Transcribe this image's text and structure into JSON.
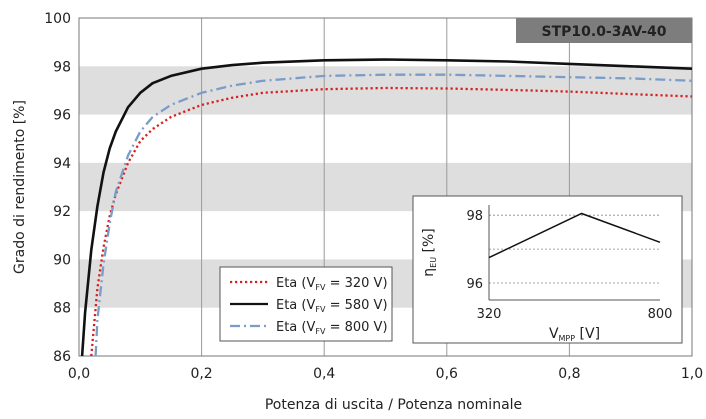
{
  "chart_data": {
    "type": "line",
    "badge": "STP10.0-3AV-40",
    "xlabel": "Potenza di uscita / Potenza nominale",
    "ylabel": "Grado di rendimento [%]",
    "xlim": [
      0,
      1
    ],
    "ylim": [
      86,
      100
    ],
    "x_ticks": [
      "0,0",
      "0,2",
      "0,4",
      "0,6",
      "0,8",
      "1,0"
    ],
    "y_ticks": [
      "86",
      "88",
      "90",
      "92",
      "94",
      "96",
      "98",
      "100"
    ],
    "grid": "vertical lines at x ticks, alternating grey bands on y",
    "legend_position": "bottom-center",
    "series": [
      {
        "name": "Eta",
        "legend_sub": "FV",
        "legend_value": "= 320 V",
        "color": "#d62020",
        "dash": "dotted",
        "x": [
          0.02,
          0.03,
          0.04,
          0.05,
          0.06,
          0.08,
          0.1,
          0.12,
          0.15,
          0.2,
          0.25,
          0.3,
          0.4,
          0.5,
          0.6,
          0.7,
          0.8,
          0.9,
          1.0
        ],
        "y": [
          86.0,
          88.8,
          90.5,
          91.8,
          92.7,
          94.0,
          94.9,
          95.4,
          95.9,
          96.4,
          96.7,
          96.9,
          97.05,
          97.1,
          97.08,
          97.02,
          96.95,
          96.85,
          96.75
        ]
      },
      {
        "name": "Eta",
        "legend_sub": "FV",
        "legend_value": "= 580 V",
        "color": "#111111",
        "dash": "solid",
        "x": [
          0.005,
          0.01,
          0.02,
          0.03,
          0.04,
          0.05,
          0.06,
          0.08,
          0.1,
          0.12,
          0.15,
          0.2,
          0.25,
          0.3,
          0.4,
          0.5,
          0.6,
          0.7,
          0.8,
          0.9,
          1.0
        ],
        "y": [
          86.0,
          87.8,
          90.4,
          92.2,
          93.6,
          94.6,
          95.3,
          96.3,
          96.9,
          97.3,
          97.6,
          97.9,
          98.05,
          98.15,
          98.25,
          98.28,
          98.25,
          98.2,
          98.1,
          98.0,
          97.9
        ]
      },
      {
        "name": "Eta",
        "legend_sub": "FV",
        "legend_value": "= 800 V",
        "color": "#7a9cc8",
        "dash": "dashdot",
        "x": [
          0.027,
          0.03,
          0.04,
          0.05,
          0.06,
          0.08,
          0.1,
          0.12,
          0.15,
          0.2,
          0.25,
          0.3,
          0.4,
          0.5,
          0.6,
          0.7,
          0.8,
          0.9,
          1.0
        ],
        "y": [
          86.0,
          87.5,
          89.8,
          91.5,
          92.8,
          94.3,
          95.3,
          95.9,
          96.4,
          96.9,
          97.2,
          97.4,
          97.6,
          97.65,
          97.65,
          97.6,
          97.55,
          97.5,
          97.4
        ]
      }
    ],
    "inset": {
      "type": "line",
      "xlabel_main": "V",
      "xlabel_sub": "MPP",
      "xlabel_unit": "[V]",
      "ylabel_main": "η",
      "ylabel_sub": "EU",
      "ylabel_unit": "[%]",
      "xlim": [
        320,
        800
      ],
      "ylim": [
        95.5,
        98.3
      ],
      "x_ticks": [
        "320",
        "800"
      ],
      "y_ticks": [
        "96",
        "98"
      ],
      "x": [
        320,
        580,
        800
      ],
      "y": [
        96.75,
        98.05,
        97.2
      ],
      "color": "#111111"
    }
  }
}
